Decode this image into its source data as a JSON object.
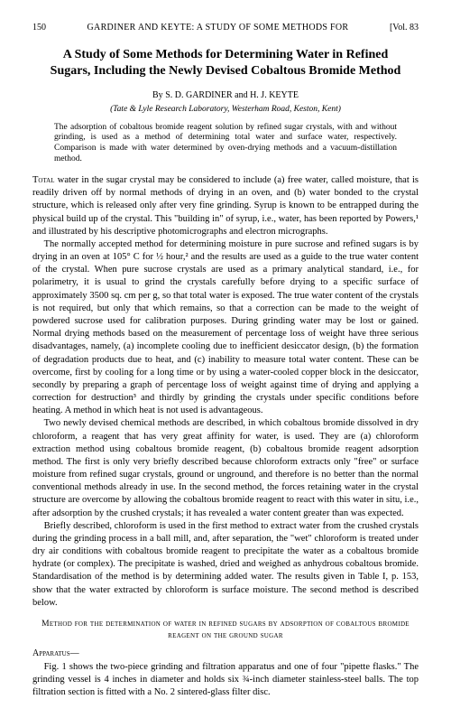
{
  "page": {
    "number": "150",
    "running_head": "GARDINER AND KEYTE: A STUDY OF SOME METHODS FOR",
    "volume": "[Vol. 83"
  },
  "title": "A Study of Some Methods for Determining Water in Refined Sugars, Including the Newly Devised Cobaltous Bromide Method",
  "byline_prefix": "By",
  "authors": "S. D. GARDINER and H. J. KEYTE",
  "affiliation": "(Tate & Lyle Research Laboratory, Westerham Road, Keston, Kent)",
  "abstract": "The adsorption of cobaltous bromide reagent solution by refined sugar crystals, with and without grinding, is used as a method of determining total water and surface water, respectively. Comparison is made with water determined by oven-drying methods and a vacuum-distillation method.",
  "paragraphs": {
    "p1_lead": "Total",
    "p1": " water in the sugar crystal may be considered to include (a) free water, called moisture, that is readily driven off by normal methods of drying in an oven, and (b) water bonded to the crystal structure, which is released only after very fine grinding. Syrup is known to be entrapped during the physical build up of the crystal. This \"building in\" of syrup, i.e., water, has been reported by Powers,¹ and illustrated by his descriptive photomicrographs and electron micrographs.",
    "p2": "The normally accepted method for determining moisture in pure sucrose and refined sugars is by drying in an oven at 105° C for ½ hour,² and the results are used as a guide to the true water content of the crystal. When pure sucrose crystals are used as a primary analytical standard, i.e., for polarimetry, it is usual to grind the crystals carefully before drying to a specific surface of approximately 3500 sq. cm per g, so that total water is exposed. The true water content of the crystals is not required, but only that which remains, so that a correction can be made to the weight of powdered sucrose used for calibration purposes. During grinding water may be lost or gained. Normal drying methods based on the measurement of percentage loss of weight have three serious disadvantages, namely, (a) incomplete cooling due to inefficient desiccator design, (b) the formation of degradation products due to heat, and (c) inability to measure total water content. These can be overcome, first by cooling for a long time or by using a water-cooled copper block in the desiccator, secondly by preparing a graph of percentage loss of weight against time of drying and applying a correction for destruction³ and thirdly by grinding the crystals under specific conditions before heating. A method in which heat is not used is advantageous.",
    "p3": "Two newly devised chemical methods are described, in which cobaltous bromide dissolved in dry chloroform, a reagent that has very great affinity for water, is used. They are (a) chloroform extraction method using cobaltous bromide reagent, (b) cobaltous bromide reagent adsorption method. The first is only very briefly described because chloroform extracts only \"free\" or surface moisture from refined sugar crystals, ground or unground, and therefore is no better than the normal conventional methods already in use. In the second method, the forces retaining water in the crystal structure are overcome by allowing the cobaltous bromide reagent to react with this water in situ, i.e., after adsorption by the crushed crystals; it has revealed a water content greater than was expected.",
    "p4": "Briefly described, chloroform is used in the first method to extract water from the crushed crystals during the grinding process in a ball mill, and, after separation, the \"wet\" chloroform is treated under dry air conditions with cobaltous bromide reagent to precipitate the water as a cobaltous bromide hydrate (or complex). The precipitate is washed, dried and weighed as anhydrous cobaltous bromide. Standardisation of the method is by determining added water. The results given in Table I, p. 153, show that the water extracted by chloroform is surface moisture. The second method is described below.",
    "p5": "Fig. 1 shows the two-piece grinding and filtration apparatus and one of four \"pipette flasks.\" The grinding vessel is 4 inches in diameter and holds six ¾-inch diameter stainless-steel balls. The top filtration section is fitted with a No. 2 sintered-glass filter disc."
  },
  "section_head": "Method for the determination of water in refined sugars by adsorption of cobaltous bromide reagent on the ground sugar",
  "subhead": "Apparatus—"
}
